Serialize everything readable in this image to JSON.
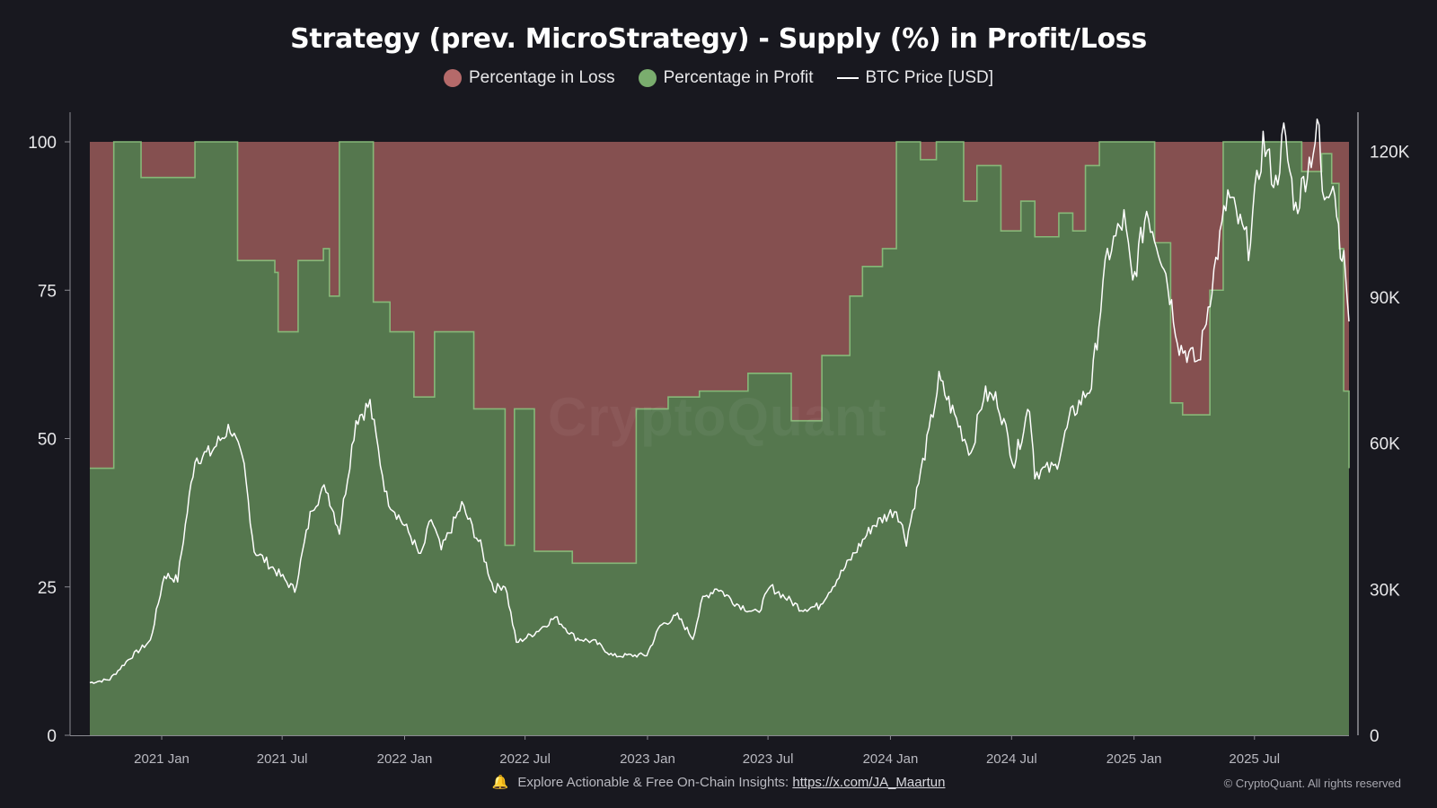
{
  "title": "Strategy (prev. MicroStrategy) - Supply (%) in Profit/Loss",
  "legend": [
    {
      "label": "Percentage in Loss",
      "color": "#b56a6a",
      "kind": "dot"
    },
    {
      "label": "Percentage in Profit",
      "color": "#7aad6e",
      "kind": "dot"
    },
    {
      "label": "BTC Price [USD]",
      "color": "#ffffff",
      "kind": "line"
    }
  ],
  "watermark": "CryptoQuant",
  "footer": {
    "text": "Explore Actionable & Free On-Chain Insights:",
    "link": "https://x.com/JA_Maartun",
    "copyright": "© CryptoQuant. All rights reserved"
  },
  "colors": {
    "loss": "#855050",
    "profit": "#55774e",
    "profit_edge": "#86b878",
    "price": "#ffffff",
    "axis": "#8a8a92"
  },
  "chart_data": {
    "type": "area",
    "x_range": [
      "2020-09-15",
      "2025-11-20"
    ],
    "left_axis": {
      "ticks": [
        "0",
        "25",
        "50",
        "75",
        "100"
      ],
      "values": [
        0,
        25,
        50,
        75,
        100
      ],
      "ylim": [
        0,
        100
      ]
    },
    "right_axis": {
      "ticks": [
        "0",
        "30K",
        "60K",
        "90K",
        "120K"
      ],
      "values": [
        0,
        30000,
        60000,
        90000,
        120000
      ],
      "ylim": [
        0,
        128000
      ]
    },
    "x_ticks": [
      {
        "label": "2021 Jan",
        "date": "2021-01-01"
      },
      {
        "label": "2021 Jul",
        "date": "2021-07-01"
      },
      {
        "label": "2022 Jan",
        "date": "2022-01-01"
      },
      {
        "label": "2022 Jul",
        "date": "2022-07-01"
      },
      {
        "label": "2023 Jan",
        "date": "2023-01-01"
      },
      {
        "label": "2023 Jul",
        "date": "2023-07-01"
      },
      {
        "label": "2024 Jan",
        "date": "2024-01-01"
      },
      {
        "label": "2024 Jul",
        "date": "2024-07-01"
      },
      {
        "label": "2025 Jan",
        "date": "2025-01-01"
      },
      {
        "label": "2025 Jul",
        "date": "2025-07-01"
      }
    ],
    "series": [
      {
        "name": "Percentage in Profit",
        "axis": "left",
        "points": [
          [
            "2020-09-15",
            45
          ],
          [
            "2020-10-20",
            45
          ],
          [
            "2020-10-21",
            100
          ],
          [
            "2020-11-30",
            100
          ],
          [
            "2020-12-01",
            94
          ],
          [
            "2021-02-15",
            94
          ],
          [
            "2021-02-20",
            100
          ],
          [
            "2021-04-20",
            100
          ],
          [
            "2021-04-25",
            80
          ],
          [
            "2021-06-20",
            78
          ],
          [
            "2021-06-25",
            68
          ],
          [
            "2021-07-20",
            68
          ],
          [
            "2021-07-25",
            80
          ],
          [
            "2021-09-01",
            82
          ],
          [
            "2021-09-10",
            74
          ],
          [
            "2021-09-25",
            100
          ],
          [
            "2021-11-05",
            100
          ],
          [
            "2021-11-15",
            73
          ],
          [
            "2021-12-10",
            68
          ],
          [
            "2022-01-01",
            68
          ],
          [
            "2022-01-15",
            57
          ],
          [
            "2022-02-15",
            68
          ],
          [
            "2022-04-05",
            68
          ],
          [
            "2022-04-15",
            55
          ],
          [
            "2022-05-25",
            55
          ],
          [
            "2022-06-01",
            32
          ],
          [
            "2022-06-15",
            55
          ],
          [
            "2022-07-10",
            55
          ],
          [
            "2022-07-15",
            31
          ],
          [
            "2022-09-01",
            31
          ],
          [
            "2022-09-10",
            29
          ],
          [
            "2022-10-10",
            29
          ],
          [
            "2022-11-01",
            29
          ],
          [
            "2022-12-01",
            29
          ],
          [
            "2022-12-15",
            55
          ],
          [
            "2023-01-20",
            55
          ],
          [
            "2023-02-01",
            57
          ],
          [
            "2023-03-20",
            58
          ],
          [
            "2023-05-15",
            58
          ],
          [
            "2023-06-01",
            61
          ],
          [
            "2023-07-25",
            61
          ],
          [
            "2023-08-05",
            53
          ],
          [
            "2023-09-10",
            53
          ],
          [
            "2023-09-20",
            64
          ],
          [
            "2023-11-01",
            74
          ],
          [
            "2023-11-20",
            79
          ],
          [
            "2023-12-20",
            82
          ],
          [
            "2024-01-10",
            100
          ],
          [
            "2024-02-15",
            97
          ],
          [
            "2024-03-10",
            100
          ],
          [
            "2024-04-20",
            90
          ],
          [
            "2024-05-10",
            96
          ],
          [
            "2024-06-15",
            85
          ],
          [
            "2024-07-15",
            90
          ],
          [
            "2024-08-05",
            84
          ],
          [
            "2024-09-10",
            88
          ],
          [
            "2024-10-01",
            85
          ],
          [
            "2024-10-20",
            96
          ],
          [
            "2024-11-10",
            100
          ],
          [
            "2025-01-20",
            100
          ],
          [
            "2025-02-01",
            83
          ],
          [
            "2025-02-25",
            56
          ],
          [
            "2025-03-15",
            54
          ],
          [
            "2025-04-10",
            54
          ],
          [
            "2025-04-25",
            75
          ],
          [
            "2025-05-15",
            100
          ],
          [
            "2025-08-01",
            100
          ],
          [
            "2025-09-10",
            95
          ],
          [
            "2025-10-10",
            98
          ],
          [
            "2025-10-25",
            93
          ],
          [
            "2025-11-05",
            82
          ],
          [
            "2025-11-12",
            58
          ],
          [
            "2025-11-20",
            45
          ]
        ]
      },
      {
        "name": "Percentage in Loss",
        "axis": "left",
        "note": "complement of Percentage in Profit (100 − profit)"
      },
      {
        "name": "BTC Price [USD]",
        "axis": "right",
        "points": [
          [
            "2020-09-15",
            10800
          ],
          [
            "2020-10-15",
            11500
          ],
          [
            "2020-11-15",
            16000
          ],
          [
            "2020-12-15",
            19400
          ],
          [
            "2021-01-05",
            33000
          ],
          [
            "2021-01-25",
            32000
          ],
          [
            "2021-02-20",
            57000
          ],
          [
            "2021-03-15",
            58000
          ],
          [
            "2021-04-14",
            63500
          ],
          [
            "2021-05-05",
            55000
          ],
          [
            "2021-05-20",
            38000
          ],
          [
            "2021-06-20",
            34000
          ],
          [
            "2021-07-20",
            29800
          ],
          [
            "2021-08-15",
            47000
          ],
          [
            "2021-09-05",
            51000
          ],
          [
            "2021-09-25",
            42000
          ],
          [
            "2021-10-20",
            65000
          ],
          [
            "2021-11-10",
            68000
          ],
          [
            "2021-12-05",
            49000
          ],
          [
            "2022-01-10",
            41000
          ],
          [
            "2022-01-25",
            36500
          ],
          [
            "2022-02-10",
            44500
          ],
          [
            "2022-02-25",
            38000
          ],
          [
            "2022-03-28",
            47300
          ],
          [
            "2022-04-25",
            39000
          ],
          [
            "2022-05-15",
            30000
          ],
          [
            "2022-06-01",
            31000
          ],
          [
            "2022-06-18",
            19000
          ],
          [
            "2022-07-15",
            21000
          ],
          [
            "2022-08-15",
            24200
          ],
          [
            "2022-09-15",
            20000
          ],
          [
            "2022-10-15",
            19100
          ],
          [
            "2022-11-10",
            16300
          ],
          [
            "2022-12-31",
            16500
          ],
          [
            "2023-01-20",
            22500
          ],
          [
            "2023-02-15",
            24500
          ],
          [
            "2023-03-10",
            20000
          ],
          [
            "2023-03-25",
            28000
          ],
          [
            "2023-04-15",
            30400
          ],
          [
            "2023-05-15",
            27000
          ],
          [
            "2023-06-15",
            25000
          ],
          [
            "2023-07-05",
            30500
          ],
          [
            "2023-08-20",
            26000
          ],
          [
            "2023-09-15",
            26500
          ],
          [
            "2023-10-25",
            34500
          ],
          [
            "2023-12-05",
            43000
          ],
          [
            "2024-01-10",
            46500
          ],
          [
            "2024-01-25",
            40000
          ],
          [
            "2024-02-28",
            62000
          ],
          [
            "2024-03-14",
            73000
          ],
          [
            "2024-04-15",
            63000
          ],
          [
            "2024-05-01",
            58000
          ],
          [
            "2024-05-20",
            70000
          ],
          [
            "2024-06-10",
            69000
          ],
          [
            "2024-07-05",
            56000
          ],
          [
            "2024-07-28",
            68000
          ],
          [
            "2024-08-05",
            54000
          ],
          [
            "2024-09-05",
            55000
          ],
          [
            "2024-09-28",
            65500
          ],
          [
            "2024-10-29",
            72000
          ],
          [
            "2024-11-12",
            88000
          ],
          [
            "2024-11-22",
            98500
          ],
          [
            "2024-12-17",
            106000
          ],
          [
            "2024-12-30",
            92500
          ],
          [
            "2025-01-20",
            108000
          ],
          [
            "2025-02-15",
            97000
          ],
          [
            "2025-03-10",
            80000
          ],
          [
            "2025-04-08",
            76500
          ],
          [
            "2025-05-01",
            95000
          ],
          [
            "2025-05-22",
            111000
          ],
          [
            "2025-06-22",
            100500
          ],
          [
            "2025-07-14",
            122000
          ],
          [
            "2025-08-02",
            113000
          ],
          [
            "2025-08-14",
            123500
          ],
          [
            "2025-09-01",
            108000
          ],
          [
            "2025-10-06",
            125000
          ],
          [
            "2025-10-11",
            110000
          ],
          [
            "2025-10-27",
            115000
          ],
          [
            "2025-11-07",
            101000
          ],
          [
            "2025-11-15",
            95000
          ],
          [
            "2025-11-20",
            85000
          ]
        ]
      }
    ],
    "grid": false,
    "legend_position": "top"
  }
}
